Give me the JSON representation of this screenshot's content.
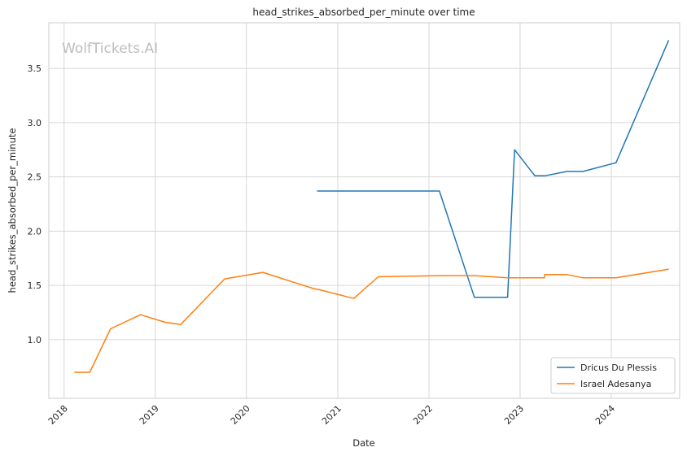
{
  "chart_data": {
    "type": "line",
    "title": "head_strikes_absorbed_per_minute over time",
    "xlabel": "Date",
    "ylabel": "head_strikes_absorbed_per_minute",
    "watermark": "WolfTickets.AI",
    "x_ticks": [
      "2018",
      "2019",
      "2020",
      "2021",
      "2022",
      "2023",
      "2024"
    ],
    "y_ticks": [
      "1.0",
      "1.5",
      "2.0",
      "2.5",
      "3.0",
      "3.5"
    ],
    "xlim": [
      "2017-11-01",
      "2024-10-01"
    ],
    "ylim": [
      0.46,
      3.92
    ],
    "grid": true,
    "legend_position": "bottom-right",
    "series": [
      {
        "name": "Dricus Du Plessis",
        "color": "#1f77b4",
        "points": [
          [
            "2020-10-10",
            2.37
          ],
          [
            "2022-02-12",
            2.37
          ],
          [
            "2022-07-02",
            1.39
          ],
          [
            "2022-11-12",
            1.39
          ],
          [
            "2022-12-10",
            2.75
          ],
          [
            "2023-03-01",
            2.51
          ],
          [
            "2023-04-10",
            2.51
          ],
          [
            "2023-07-08",
            2.55
          ],
          [
            "2023-09-10",
            2.55
          ],
          [
            "2024-01-20",
            2.63
          ],
          [
            "2024-08-18",
            3.76
          ]
        ]
      },
      {
        "name": "Israel Adesanya",
        "color": "#ff7f0e",
        "points": [
          [
            "2018-02-11",
            0.7
          ],
          [
            "2018-04-14",
            0.7
          ],
          [
            "2018-07-06",
            1.1
          ],
          [
            "2018-11-03",
            1.23
          ],
          [
            "2019-02-10",
            1.16
          ],
          [
            "2019-04-13",
            1.14
          ],
          [
            "2019-10-06",
            1.56
          ],
          [
            "2020-03-07",
            1.62
          ],
          [
            "2020-09-27",
            1.47
          ],
          [
            "2020-10-20",
            1.46
          ],
          [
            "2021-03-06",
            1.38
          ],
          [
            "2021-06-12",
            1.58
          ],
          [
            "2022-02-12",
            1.59
          ],
          [
            "2022-07-02",
            1.59
          ],
          [
            "2022-11-12",
            1.57
          ],
          [
            "2023-04-08",
            1.57
          ],
          [
            "2023-04-10",
            1.6
          ],
          [
            "2023-07-08",
            1.6
          ],
          [
            "2023-09-10",
            1.57
          ],
          [
            "2024-01-20",
            1.57
          ],
          [
            "2024-08-18",
            1.65
          ]
        ]
      }
    ]
  }
}
